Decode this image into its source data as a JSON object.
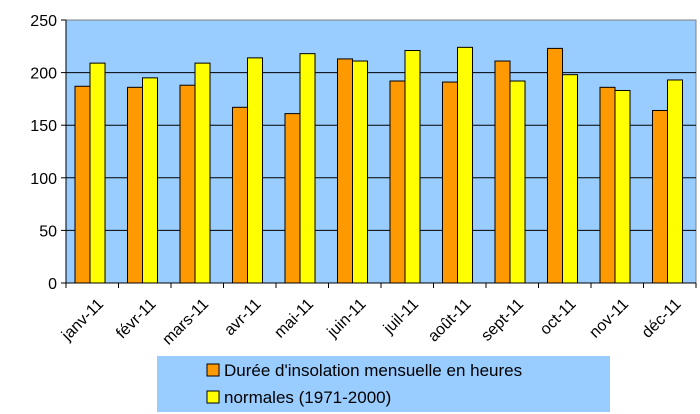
{
  "chart_data": {
    "type": "bar",
    "categories": [
      "janv-11",
      "févr-11",
      "mars-11",
      "avr-11",
      "mai-11",
      "juin-11",
      "juil-11",
      "août-11",
      "sept-11",
      "oct-11",
      "nov-11",
      "déc-11"
    ],
    "series": [
      {
        "name": "Durée d'insolation mensuelle en heures",
        "color": "#ff9900",
        "values": [
          187,
          186,
          188,
          167,
          161,
          213,
          192,
          191,
          211,
          223,
          186,
          164
        ]
      },
      {
        "name": "normales (1971-2000)",
        "color": "#ffff00",
        "values": [
          209,
          195,
          209,
          214,
          218,
          211,
          221,
          224,
          192,
          198,
          183,
          193
        ]
      }
    ],
    "yticks": [
      0,
      50,
      100,
      150,
      200,
      250
    ],
    "ylim": [
      0,
      250
    ],
    "grid": true,
    "plot_background": "#99ccff",
    "legend_position": "bottom"
  }
}
